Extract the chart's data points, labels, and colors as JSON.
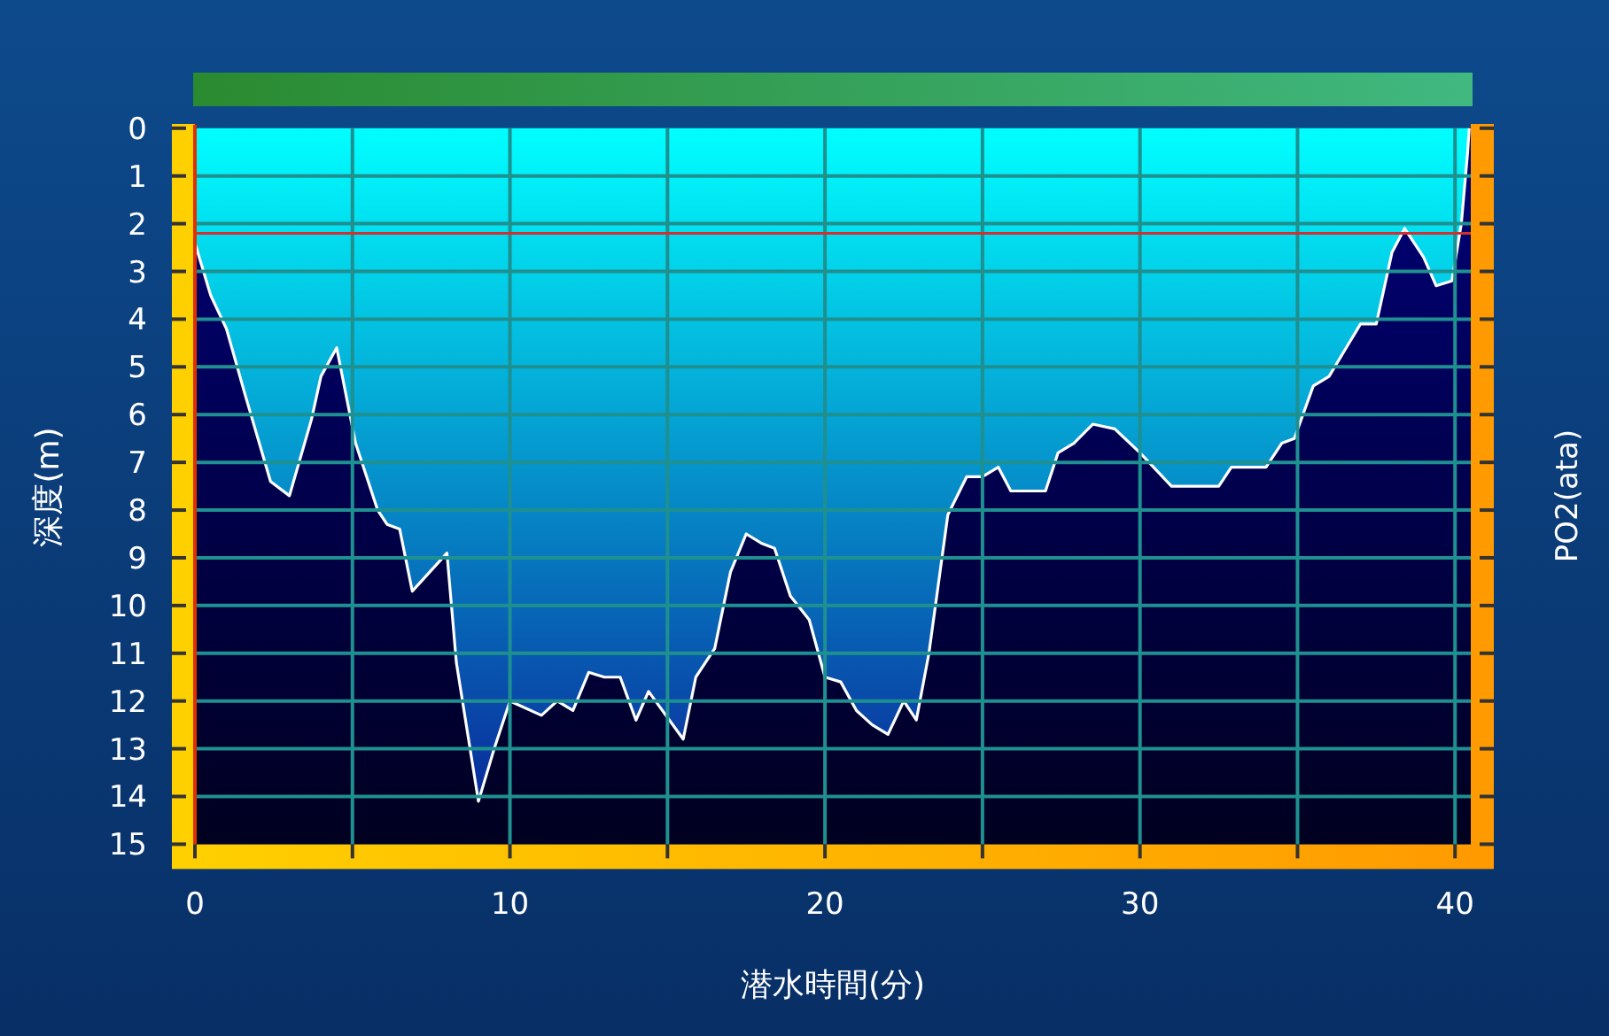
{
  "chart_data": {
    "type": "area",
    "xlabel": "潜水時間(分)",
    "ylabel": "深度(m)",
    "y2label": "PO2(ata)",
    "x": [
      0,
      0.5,
      1,
      1.6,
      2.4,
      3,
      3.7,
      4,
      4.5,
      5.1,
      5.8,
      6.1,
      6.5,
      6.9,
      8,
      8.3,
      9,
      9.5,
      10,
      11,
      11.5,
      12,
      12.5,
      13,
      13.5,
      14,
      14.4,
      15.5,
      15.9,
      16.5,
      17,
      17.5,
      18,
      18.4,
      18.9,
      19.5,
      20,
      20.5,
      21,
      21.5,
      22,
      22.5,
      22.9,
      23.3,
      23.9,
      24.5,
      25,
      25.5,
      25.9,
      27,
      27.4,
      27.9,
      28.5,
      29.2,
      30,
      31,
      32.5,
      32.9,
      34,
      34.5,
      34.9,
      35.5,
      36,
      37,
      37.5,
      38,
      38.4,
      39,
      39.4,
      39.9,
      40.2,
      40.4,
      40.45
    ],
    "series": [
      {
        "color": "#00ffff",
        "values": [
          2.4,
          3.5,
          4.2,
          5.6,
          7.4,
          7.7,
          6.1,
          5.2,
          4.6,
          6.6,
          8,
          8.3,
          8.4,
          9.7,
          8.9,
          11.2,
          14.1,
          13,
          12,
          12.3,
          12,
          12.2,
          11.4,
          11.5,
          11.5,
          12.4,
          11.8,
          12.8,
          11.5,
          10.9,
          9.3,
          8.5,
          8.7,
          8.8,
          9.8,
          10.3,
          11.5,
          11.6,
          12.2,
          12.5,
          12.7,
          12,
          12.4,
          11,
          8.1,
          7.3,
          7.3,
          7.1,
          7.6,
          7.6,
          6.8,
          6.6,
          6.2,
          6.3,
          6.8,
          7.5,
          7.5,
          7.1,
          7.1,
          6.6,
          6.5,
          5.4,
          5.2,
          4.1,
          4.1,
          2.6,
          2.1,
          2.7,
          3.3,
          3.2,
          2,
          0.5,
          0
        ]
      }
    ],
    "xlim": [
      0,
      40.5
    ],
    "ylim": [
      15,
      0
    ],
    "xticks": [
      0,
      {
        "value": 5,
        "label": null
      },
      10,
      {
        "value": 15,
        "label": null
      },
      20,
      {
        "value": 25,
        "label": null
      },
      30,
      {
        "value": 35,
        "label": null
      },
      40
    ],
    "yticks": [
      0,
      1,
      2,
      3,
      4,
      5,
      6,
      7,
      8,
      9,
      10,
      11,
      12,
      13,
      14,
      15
    ],
    "grid": true,
    "ref_lines": [
      {
        "axis": "y",
        "value": 2.2,
        "label": null,
        "color": "#d03030"
      }
    ]
  }
}
